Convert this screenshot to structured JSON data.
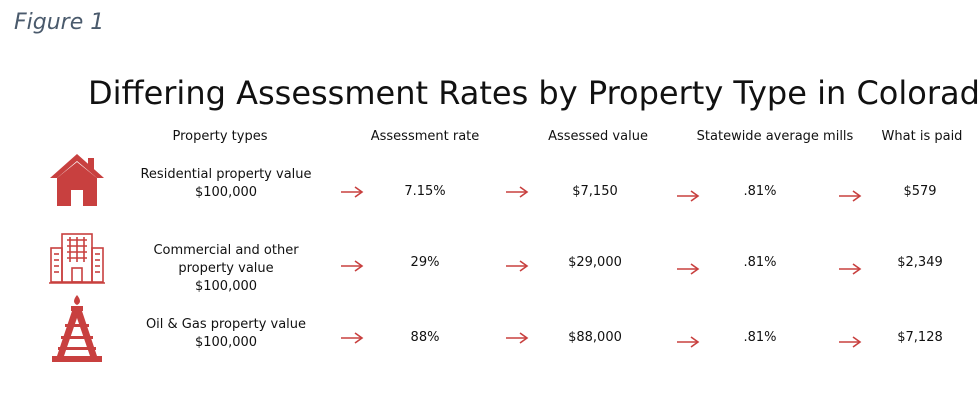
{
  "figure_label": "Figure 1",
  "title": "Differing Assessment Rates by Property Type in Colorado",
  "headers": [
    "Property types",
    "Assessment rate",
    "Assessed value",
    "Statewide average mills",
    "What is paid"
  ],
  "rows": [
    {
      "icon": "house-icon",
      "label_lines": [
        "Residential property value",
        "$100,000"
      ],
      "assessment_rate": "7.15%",
      "assessed_value": "$7,150",
      "mills": ".81%",
      "paid": "$579"
    },
    {
      "icon": "office-building-icon",
      "label_lines": [
        "Commercial and other",
        "property value",
        "$100,000"
      ],
      "assessment_rate": "29%",
      "assessed_value": "$29,000",
      "mills": ".81%",
      "paid": "$2,349"
    },
    {
      "icon": "oil-rig-icon",
      "label_lines": [
        "Oil & Gas property value",
        "$100,000"
      ],
      "assessment_rate": "88%",
      "assessed_value": "$88,000",
      "mills": ".81%",
      "paid": "$7,128"
    }
  ],
  "colors": {
    "accent": "#c8403f",
    "figure_label": "#4a5a6c"
  }
}
